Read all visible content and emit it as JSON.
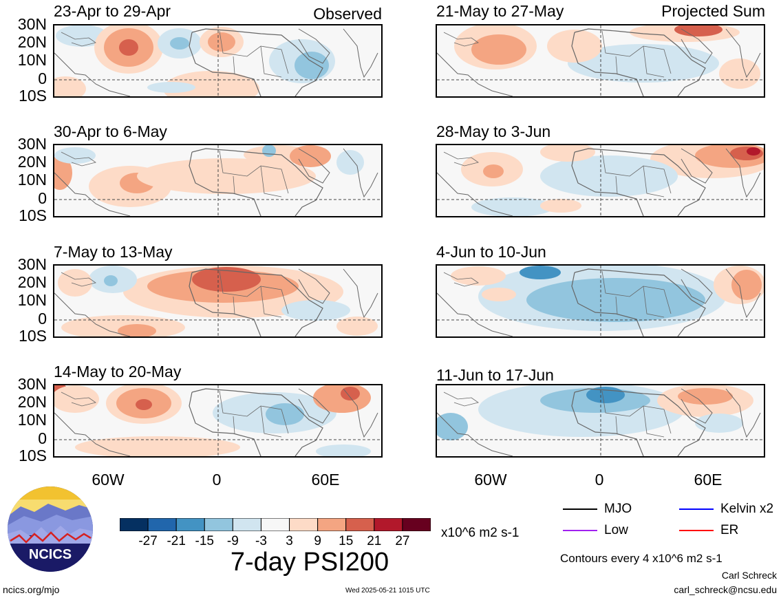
{
  "header": {
    "observed_label": "Observed",
    "projected_label": "Projected Sum"
  },
  "panels_observed": [
    {
      "title": "23-Apr to 29-Apr"
    },
    {
      "title": "30-Apr to 6-May"
    },
    {
      "title": "7-May to 13-May"
    },
    {
      "title": "14-May to 20-May"
    }
  ],
  "panels_projected": [
    {
      "title": "21-May to 27-May"
    },
    {
      "title": "28-May to 3-Jun"
    },
    {
      "title": "4-Jun to 10-Jun"
    },
    {
      "title": "11-Jun to 17-Jun"
    }
  ],
  "lat_labels": [
    "30N",
    "20N",
    "10N",
    "0",
    "10S"
  ],
  "lon_labels": [
    "60W",
    "0",
    "60E"
  ],
  "colorbar": {
    "colors": [
      "#053061",
      "#2166ac",
      "#4393c3",
      "#92c5de",
      "#d1e5f0",
      "#f7f7f7",
      "#fddbc7",
      "#f4a582",
      "#d6604d",
      "#b2182b",
      "#67001f"
    ],
    "ticks": [
      "-27",
      "-21",
      "-15",
      "-9",
      "-3",
      "3",
      "9",
      "15",
      "21",
      "27"
    ],
    "units": "x10^6 m2 s-1"
  },
  "main_title": "7-day PSI200",
  "legend": {
    "items": [
      {
        "label": "MJO",
        "color": "#000000"
      },
      {
        "label": "Kelvin x2",
        "color": "#0000ff"
      },
      {
        "label": "Low",
        "color": "#a020f0"
      },
      {
        "label": "ER",
        "color": "#ff0000"
      }
    ],
    "contours_note": "Contours every 4 x10^6 m2 s-1"
  },
  "credits": {
    "author": "Carl Schreck",
    "email": "carl_schreck@ncsu.edu",
    "website": "ncics.org/mjo",
    "timestamp": "Wed 2025-05-21 1015 UTC",
    "logo_text": "NCICS"
  }
}
